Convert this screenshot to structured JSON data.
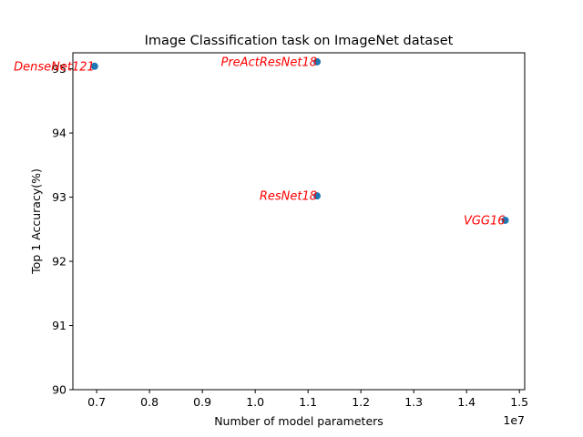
{
  "chart_data": {
    "type": "scatter",
    "title": "Image Classification task on ImageNet dataset",
    "xlabel": "Number of model parameters",
    "ylabel": "Top 1 Accuracy(%)",
    "x_offset_label": "1e7",
    "x_scale": 10000000,
    "xlim": [
      6550000,
      15100000
    ],
    "ylim": [
      90,
      95.25
    ],
    "x_ticks": [
      0.7,
      0.8,
      0.9,
      1.0,
      1.1,
      1.2,
      1.3,
      1.4,
      1.5
    ],
    "x_tick_labels": [
      "0.7",
      "0.8",
      "0.9",
      "1.0",
      "1.1",
      "1.2",
      "1.3",
      "1.4",
      "1.5"
    ],
    "y_ticks": [
      90,
      91,
      92,
      93,
      94,
      95
    ],
    "y_tick_labels": [
      "90",
      "91",
      "92",
      "93",
      "94",
      "95"
    ],
    "grid": false,
    "legend": "none",
    "marker_color": "#1f77b4",
    "label_color": "#ff0000",
    "points": [
      {
        "label": "DenseNet121",
        "x": 6960000,
        "y": 95.04
      },
      {
        "label": "PreActResNet18",
        "x": 11170000,
        "y": 95.11
      },
      {
        "label": "ResNet18",
        "x": 11170000,
        "y": 93.02
      },
      {
        "label": "VGG16",
        "x": 14730000,
        "y": 92.64
      }
    ]
  }
}
